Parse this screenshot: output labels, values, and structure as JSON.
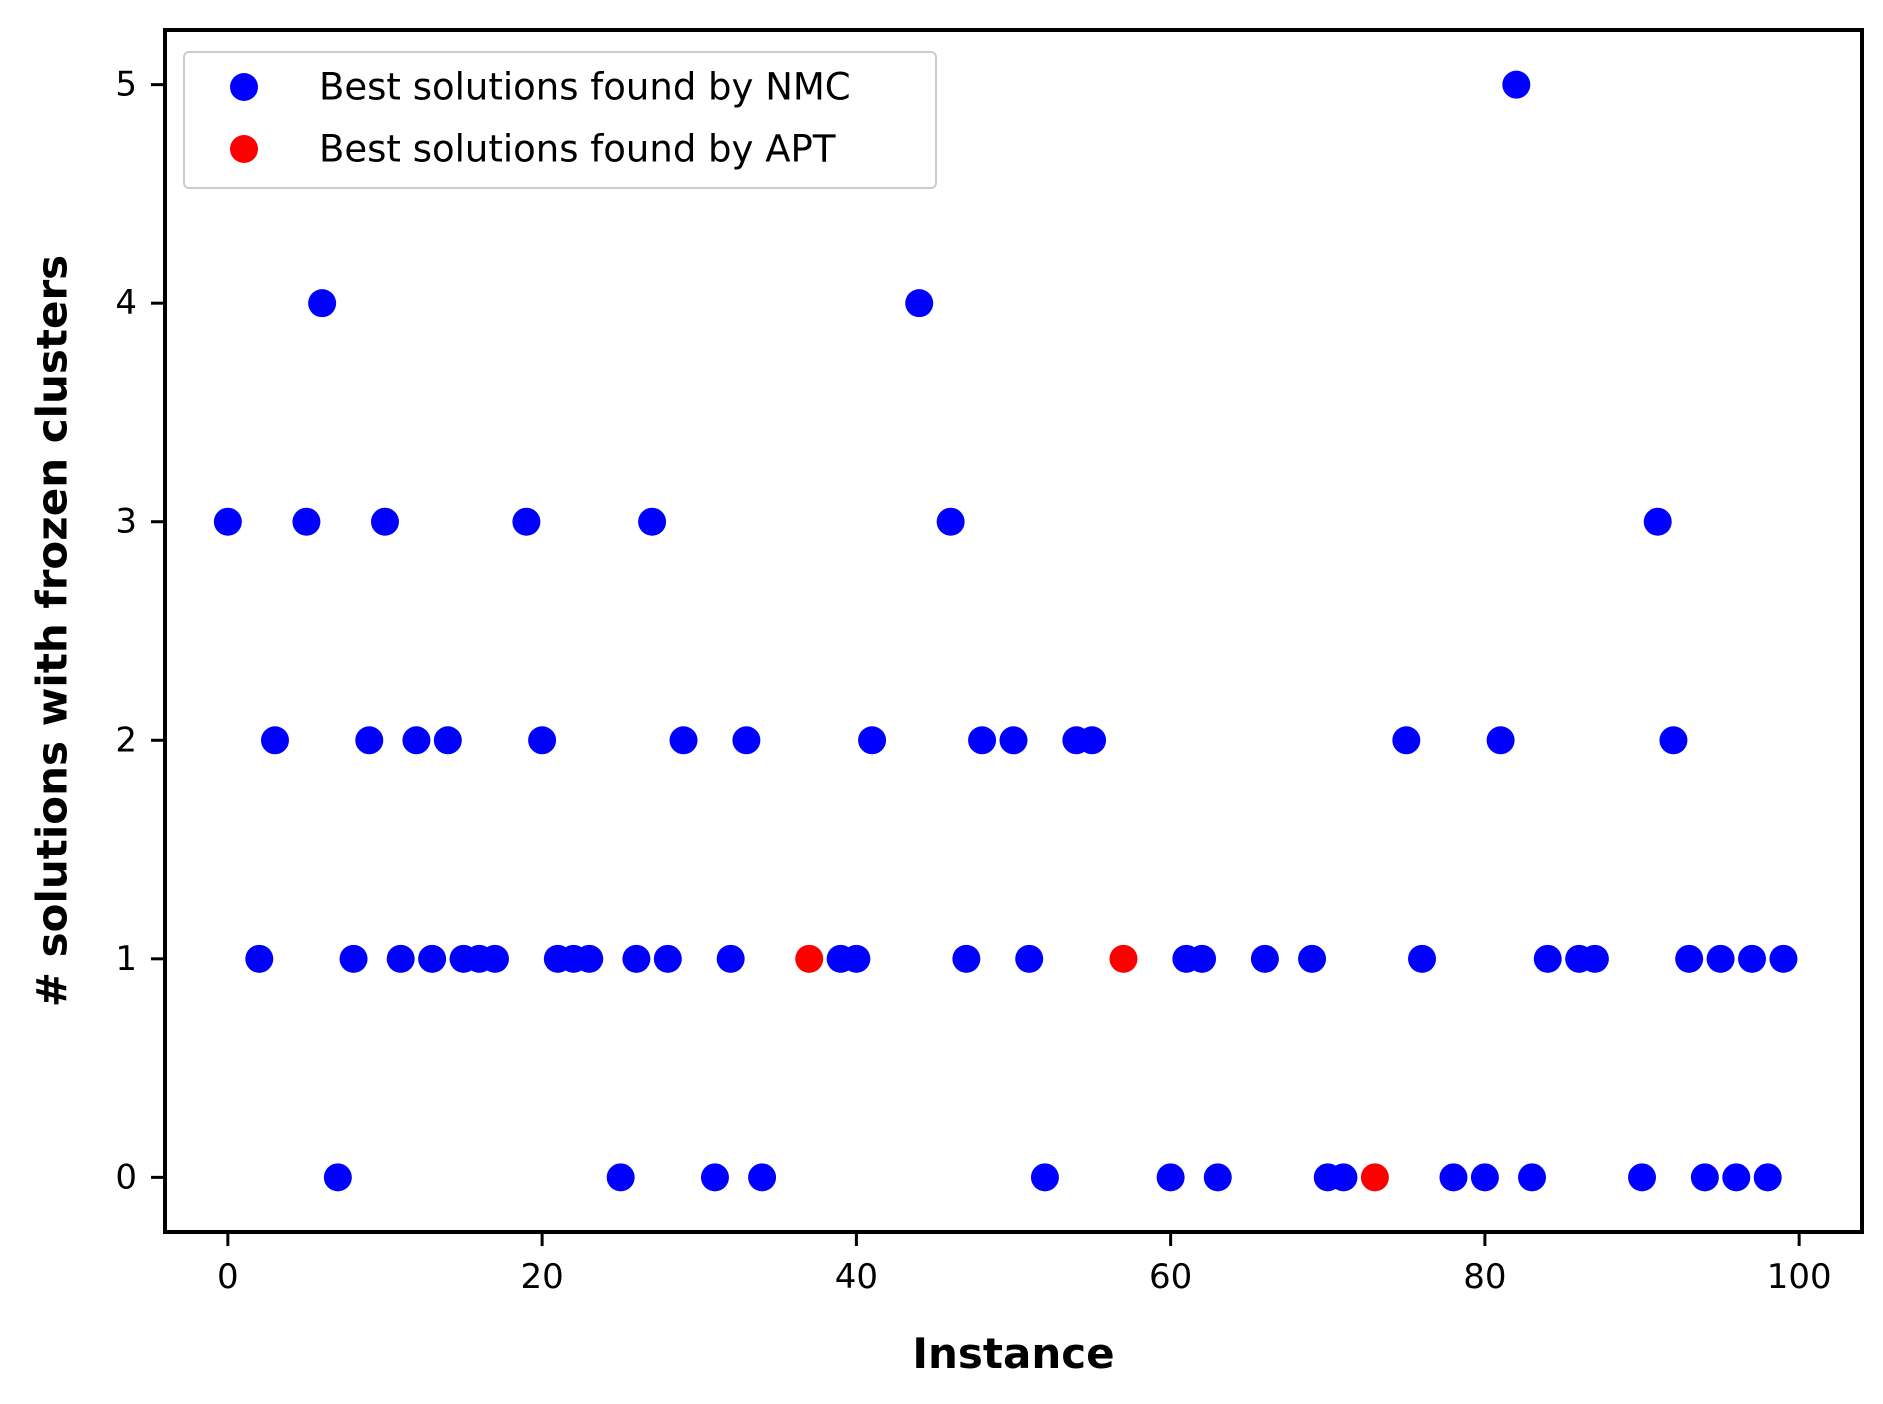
{
  "chart_data": {
    "type": "scatter",
    "title": "",
    "xlabel": "Instance",
    "ylabel": "# solutions with frozen clusters",
    "xlim": [
      -4,
      104
    ],
    "ylim": [
      -0.25,
      5.25
    ],
    "xticks": [
      0,
      20,
      40,
      60,
      80,
      100
    ],
    "yticks": [
      0,
      1,
      2,
      3,
      4,
      5
    ],
    "grid": false,
    "legend_position": "top-left",
    "series": [
      {
        "name": "Best solutions found by NMC",
        "color": "#0000ff",
        "x": [
          0,
          2,
          3,
          5,
          6,
          7,
          8,
          9,
          10,
          11,
          12,
          13,
          14,
          15,
          16,
          17,
          19,
          20,
          21,
          22,
          23,
          25,
          26,
          27,
          28,
          29,
          31,
          32,
          33,
          34,
          39,
          40,
          41,
          44,
          46,
          47,
          48,
          50,
          51,
          52,
          54,
          55,
          60,
          61,
          62,
          63,
          66,
          69,
          70,
          71,
          75,
          76,
          78,
          80,
          81,
          82,
          83,
          84,
          86,
          87,
          90,
          91,
          92,
          93,
          94,
          95,
          96,
          97,
          98,
          99
        ],
        "y": [
          3,
          1,
          2,
          3,
          4,
          0,
          1,
          2,
          3,
          1,
          2,
          1,
          2,
          1,
          1,
          1,
          3,
          2,
          1,
          1,
          1,
          0,
          1,
          3,
          1,
          2,
          0,
          1,
          2,
          0,
          1,
          1,
          2,
          4,
          3,
          1,
          2,
          2,
          1,
          0,
          2,
          2,
          0,
          1,
          1,
          0,
          1,
          1,
          0,
          0,
          2,
          1,
          0,
          0,
          2,
          5,
          0,
          1,
          1,
          1,
          0,
          3,
          2,
          1,
          0,
          1,
          0,
          1,
          0,
          1
        ]
      },
      {
        "name": "Best solutions found by APT",
        "color": "#ff0000",
        "x": [
          37,
          57,
          73
        ],
        "y": [
          1,
          1,
          0
        ]
      }
    ]
  }
}
